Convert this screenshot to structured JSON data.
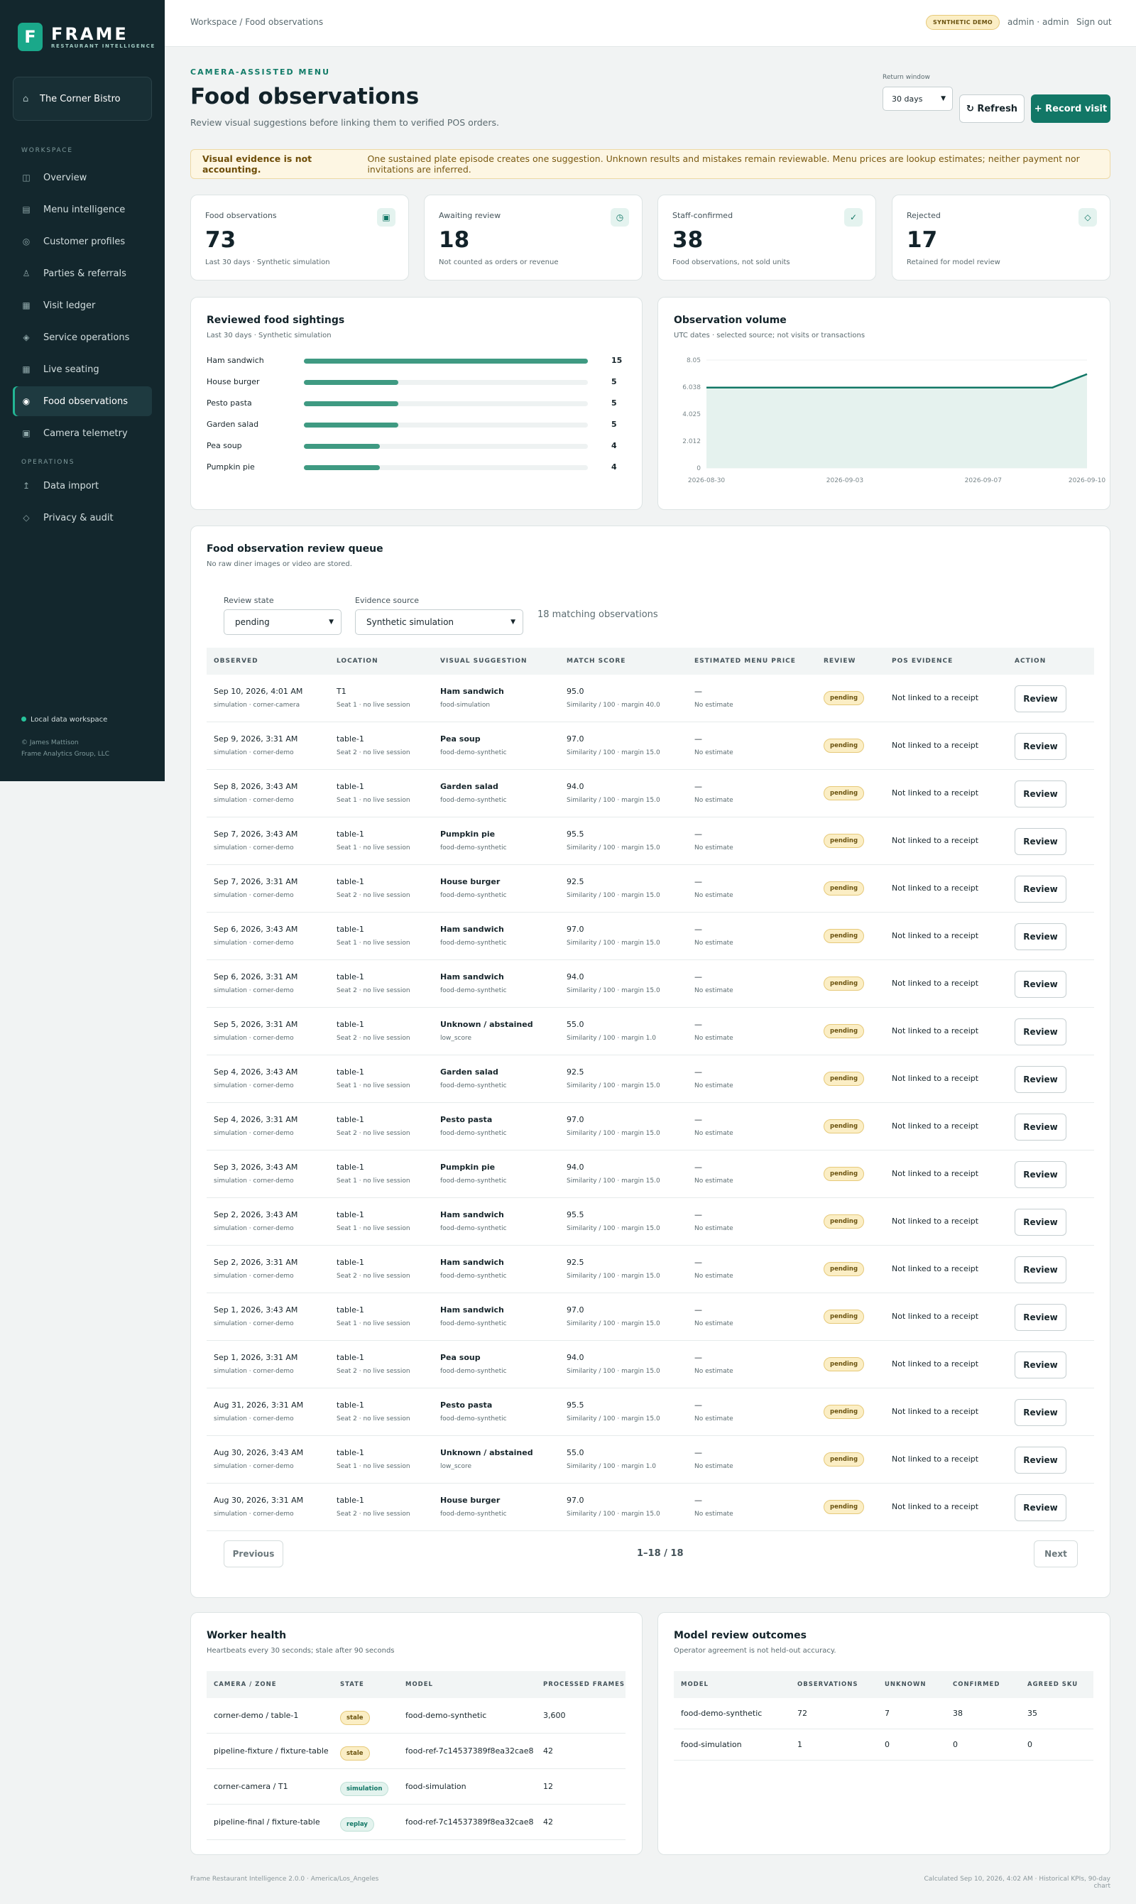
{
  "brand": {
    "name": "FRAME",
    "sub": "RESTAURANT INTELLIGENCE",
    "letter": "F"
  },
  "venue": "The Corner Bistro",
  "sidebar": {
    "workspace_head": "WORKSPACE",
    "operations_head": "OPERATIONS",
    "workspace": [
      {
        "label": "Overview",
        "icon": "◫"
      },
      {
        "label": "Menu intelligence",
        "icon": "▤"
      },
      {
        "label": "Customer profiles",
        "icon": "◎"
      },
      {
        "label": "Parties & referrals",
        "icon": "♙"
      },
      {
        "label": "Visit ledger",
        "icon": "▦"
      },
      {
        "label": "Service operations",
        "icon": "◈"
      },
      {
        "label": "Live seating",
        "icon": "▦"
      },
      {
        "label": "Food observations",
        "icon": "◉"
      },
      {
        "label": "Camera telemetry",
        "icon": "▣"
      }
    ],
    "operations": [
      {
        "label": "Data import",
        "icon": "↥"
      },
      {
        "label": "Privacy & audit",
        "icon": "◇"
      }
    ],
    "footer": "Local data workspace",
    "copy1": "© James Mattison",
    "copy2": "Frame Analytics Group, LLC"
  },
  "topbar": {
    "breadcrumb": "Workspace / Food observations",
    "badge": "SYNTHETIC DEMO",
    "user": "admin · admin",
    "signout": "Sign out"
  },
  "header": {
    "eyebrow": "CAMERA-ASSISTED MENU",
    "title": "Food observations",
    "subtitle": "Review visual suggestions before linking them to verified POS orders.",
    "return_label": "Return window",
    "return_value": "30 days",
    "refresh": "↻ Refresh",
    "record": "+ Record visit"
  },
  "notice": {
    "bold": "Visual evidence is not accounting.",
    "text": "One sustained plate episode creates one suggestion. Unknown results and mistakes remain reviewable. Menu prices are lookup estimates; neither payment nor invitations are inferred."
  },
  "kpis": [
    {
      "label": "Food observations",
      "value": "73",
      "note": "Last 30 days · Synthetic simulation",
      "icon": "▣"
    },
    {
      "label": "Awaiting review",
      "value": "18",
      "note": "Not counted as orders or revenue",
      "icon": "◷"
    },
    {
      "label": "Staff-confirmed",
      "value": "38",
      "note": "Food observations, not sold units",
      "icon": "✓"
    },
    {
      "label": "Rejected",
      "value": "17",
      "note": "Retained for model review",
      "icon": "◇"
    }
  ],
  "sightings": {
    "title": "Reviewed food sightings",
    "subtitle": "Last 30 days · Synthetic simulation",
    "max": 15,
    "items": [
      {
        "label": "Ham sandwich",
        "value": 15
      },
      {
        "label": "House burger",
        "value": 5
      },
      {
        "label": "Pesto pasta",
        "value": 5
      },
      {
        "label": "Garden salad",
        "value": 5
      },
      {
        "label": "Pea soup",
        "value": 4
      },
      {
        "label": "Pumpkin pie",
        "value": 4
      }
    ]
  },
  "chart_data": {
    "type": "area",
    "title": "Observation volume",
    "subtitle": "UTC dates · selected source; not visits or transactions",
    "yticks": [
      "8.05",
      "6.038",
      "4.025",
      "2.012",
      "0"
    ],
    "xticks": [
      "2026-08-30",
      "2026-09-03",
      "2026-09-07",
      "2026-09-10"
    ],
    "ylim": [
      0,
      8.05
    ],
    "x": [
      "2026-08-30",
      "2026-09-09",
      "2026-09-10"
    ],
    "values": [
      6,
      6,
      7
    ],
    "color": "#127766"
  },
  "queue": {
    "title": "Food observation review queue",
    "subtitle": "No raw diner images or video are stored.",
    "state_label": "Review state",
    "state_value": "pending",
    "source_label": "Evidence source",
    "source_value": "Synthetic simulation",
    "count": "18 matching observations",
    "headers": [
      "OBSERVED",
      "LOCATION",
      "VISUAL SUGGESTION",
      "MATCH SCORE",
      "ESTIMATED MENU PRICE",
      "REVIEW",
      "POS EVIDENCE",
      "ACTION"
    ],
    "rows": [
      {
        "time": "Sep 10, 2026, 4:01 AM",
        "src": "simulation · corner-camera",
        "loc": "T1",
        "seat": "Seat 1 · no live session",
        "food": "Ham sandwich",
        "model": "food-simulation",
        "score": "95.0",
        "sim": "Similarity / 100 · margin 40.0",
        "price": "—",
        "est": "No estimate",
        "review": "pending",
        "pos": "Not linked to a receipt",
        "action": "Review"
      },
      {
        "time": "Sep 9, 2026, 3:31 AM",
        "src": "simulation · corner-demo",
        "loc": "table-1",
        "seat": "Seat 2 · no live session",
        "food": "Pea soup",
        "model": "food-demo-synthetic",
        "score": "97.0",
        "sim": "Similarity / 100 · margin 15.0",
        "price": "—",
        "est": "No estimate",
        "review": "pending",
        "pos": "Not linked to a receipt",
        "action": "Review"
      },
      {
        "time": "Sep 8, 2026, 3:43 AM",
        "src": "simulation · corner-demo",
        "loc": "table-1",
        "seat": "Seat 1 · no live session",
        "food": "Garden salad",
        "model": "food-demo-synthetic",
        "score": "94.0",
        "sim": "Similarity / 100 · margin 15.0",
        "price": "—",
        "est": "No estimate",
        "review": "pending",
        "pos": "Not linked to a receipt",
        "action": "Review"
      },
      {
        "time": "Sep 7, 2026, 3:43 AM",
        "src": "simulation · corner-demo",
        "loc": "table-1",
        "seat": "Seat 1 · no live session",
        "food": "Pumpkin pie",
        "model": "food-demo-synthetic",
        "score": "95.5",
        "sim": "Similarity / 100 · margin 15.0",
        "price": "—",
        "est": "No estimate",
        "review": "pending",
        "pos": "Not linked to a receipt",
        "action": "Review"
      },
      {
        "time": "Sep 7, 2026, 3:31 AM",
        "src": "simulation · corner-demo",
        "loc": "table-1",
        "seat": "Seat 2 · no live session",
        "food": "House burger",
        "model": "food-demo-synthetic",
        "score": "92.5",
        "sim": "Similarity / 100 · margin 15.0",
        "price": "—",
        "est": "No estimate",
        "review": "pending",
        "pos": "Not linked to a receipt",
        "action": "Review"
      },
      {
        "time": "Sep 6, 2026, 3:43 AM",
        "src": "simulation · corner-demo",
        "loc": "table-1",
        "seat": "Seat 1 · no live session",
        "food": "Ham sandwich",
        "model": "food-demo-synthetic",
        "score": "97.0",
        "sim": "Similarity / 100 · margin 15.0",
        "price": "—",
        "est": "No estimate",
        "review": "pending",
        "pos": "Not linked to a receipt",
        "action": "Review"
      },
      {
        "time": "Sep 6, 2026, 3:31 AM",
        "src": "simulation · corner-demo",
        "loc": "table-1",
        "seat": "Seat 2 · no live session",
        "food": "Ham sandwich",
        "model": "food-demo-synthetic",
        "score": "94.0",
        "sim": "Similarity / 100 · margin 15.0",
        "price": "—",
        "est": "No estimate",
        "review": "pending",
        "pos": "Not linked to a receipt",
        "action": "Review"
      },
      {
        "time": "Sep 5, 2026, 3:31 AM",
        "src": "simulation · corner-demo",
        "loc": "table-1",
        "seat": "Seat 2 · no live session",
        "food": "Unknown / abstained",
        "model": "low_score",
        "score": "55.0",
        "sim": "Similarity / 100 · margin 1.0",
        "price": "—",
        "est": "No estimate",
        "review": "pending",
        "pos": "Not linked to a receipt",
        "action": "Review"
      },
      {
        "time": "Sep 4, 2026, 3:43 AM",
        "src": "simulation · corner-demo",
        "loc": "table-1",
        "seat": "Seat 1 · no live session",
        "food": "Garden salad",
        "model": "food-demo-synthetic",
        "score": "92.5",
        "sim": "Similarity / 100 · margin 15.0",
        "price": "—",
        "est": "No estimate",
        "review": "pending",
        "pos": "Not linked to a receipt",
        "action": "Review"
      },
      {
        "time": "Sep 4, 2026, 3:31 AM",
        "src": "simulation · corner-demo",
        "loc": "table-1",
        "seat": "Seat 2 · no live session",
        "food": "Pesto pasta",
        "model": "food-demo-synthetic",
        "score": "97.0",
        "sim": "Similarity / 100 · margin 15.0",
        "price": "—",
        "est": "No estimate",
        "review": "pending",
        "pos": "Not linked to a receipt",
        "action": "Review"
      },
      {
        "time": "Sep 3, 2026, 3:43 AM",
        "src": "simulation · corner-demo",
        "loc": "table-1",
        "seat": "Seat 1 · no live session",
        "food": "Pumpkin pie",
        "model": "food-demo-synthetic",
        "score": "94.0",
        "sim": "Similarity / 100 · margin 15.0",
        "price": "—",
        "est": "No estimate",
        "review": "pending",
        "pos": "Not linked to a receipt",
        "action": "Review"
      },
      {
        "time": "Sep 2, 2026, 3:43 AM",
        "src": "simulation · corner-demo",
        "loc": "table-1",
        "seat": "Seat 1 · no live session",
        "food": "Ham sandwich",
        "model": "food-demo-synthetic",
        "score": "95.5",
        "sim": "Similarity / 100 · margin 15.0",
        "price": "—",
        "est": "No estimate",
        "review": "pending",
        "pos": "Not linked to a receipt",
        "action": "Review"
      },
      {
        "time": "Sep 2, 2026, 3:31 AM",
        "src": "simulation · corner-demo",
        "loc": "table-1",
        "seat": "Seat 2 · no live session",
        "food": "Ham sandwich",
        "model": "food-demo-synthetic",
        "score": "92.5",
        "sim": "Similarity / 100 · margin 15.0",
        "price": "—",
        "est": "No estimate",
        "review": "pending",
        "pos": "Not linked to a receipt",
        "action": "Review"
      },
      {
        "time": "Sep 1, 2026, 3:43 AM",
        "src": "simulation · corner-demo",
        "loc": "table-1",
        "seat": "Seat 1 · no live session",
        "food": "Ham sandwich",
        "model": "food-demo-synthetic",
        "score": "97.0",
        "sim": "Similarity / 100 · margin 15.0",
        "price": "—",
        "est": "No estimate",
        "review": "pending",
        "pos": "Not linked to a receipt",
        "action": "Review"
      },
      {
        "time": "Sep 1, 2026, 3:31 AM",
        "src": "simulation · corner-demo",
        "loc": "table-1",
        "seat": "Seat 2 · no live session",
        "food": "Pea soup",
        "model": "food-demo-synthetic",
        "score": "94.0",
        "sim": "Similarity / 100 · margin 15.0",
        "price": "—",
        "est": "No estimate",
        "review": "pending",
        "pos": "Not linked to a receipt",
        "action": "Review"
      },
      {
        "time": "Aug 31, 2026, 3:31 AM",
        "src": "simulation · corner-demo",
        "loc": "table-1",
        "seat": "Seat 2 · no live session",
        "food": "Pesto pasta",
        "model": "food-demo-synthetic",
        "score": "95.5",
        "sim": "Similarity / 100 · margin 15.0",
        "price": "—",
        "est": "No estimate",
        "review": "pending",
        "pos": "Not linked to a receipt",
        "action": "Review"
      },
      {
        "time": "Aug 30, 2026, 3:43 AM",
        "src": "simulation · corner-demo",
        "loc": "table-1",
        "seat": "Seat 1 · no live session",
        "food": "Unknown / abstained",
        "model": "low_score",
        "score": "55.0",
        "sim": "Similarity / 100 · margin 1.0",
        "price": "—",
        "est": "No estimate",
        "review": "pending",
        "pos": "Not linked to a receipt",
        "action": "Review"
      },
      {
        "time": "Aug 30, 2026, 3:31 AM",
        "src": "simulation · corner-demo",
        "loc": "table-1",
        "seat": "Seat 2 · no live session",
        "food": "House burger",
        "model": "food-demo-synthetic",
        "score": "97.0",
        "sim": "Similarity / 100 · margin 15.0",
        "price": "—",
        "est": "No estimate",
        "review": "pending",
        "pos": "Not linked to a receipt",
        "action": "Review"
      }
    ],
    "prev": "Previous",
    "next": "Next",
    "page_info": "1–18 / 18"
  },
  "worker": {
    "title": "Worker health",
    "subtitle": "Heartbeats every 30 seconds; stale after 90 seconds",
    "headers": [
      "CAMERA / ZONE",
      "STATE",
      "MODEL",
      "PROCESSED FRAMES"
    ],
    "rows": [
      {
        "zone": "corner-demo / table-1",
        "state": "stale",
        "model": "food-demo-synthetic",
        "frames": "3,600"
      },
      {
        "zone": "pipeline-fixture / fixture-table",
        "state": "stale",
        "model": "food-ref-7c14537389f8ea32cae8",
        "frames": "42"
      },
      {
        "zone": "corner-camera / T1",
        "state": "simulation",
        "model": "food-simulation",
        "frames": "12"
      },
      {
        "zone": "pipeline-final / fixture-table",
        "state": "replay",
        "model": "food-ref-7c14537389f8ea32cae8",
        "frames": "42"
      }
    ]
  },
  "outcomes": {
    "title": "Model review outcomes",
    "subtitle": "Operator agreement is not held-out accuracy.",
    "headers": [
      "MODEL",
      "OBSERVATIONS",
      "UNKNOWN",
      "CONFIRMED",
      "AGREED SKU"
    ],
    "rows": [
      {
        "model": "food-demo-synthetic",
        "obs": "72",
        "unknown": "7",
        "confirmed": "38",
        "agreed": "35"
      },
      {
        "model": "food-simulation",
        "obs": "1",
        "unknown": "0",
        "confirmed": "0",
        "agreed": "0"
      }
    ]
  },
  "footer": {
    "left": "Frame Restaurant Intelligence 2.0.0 · America/Los_Angeles",
    "right": "Calculated Sep 10, 2026, 4:02 AM · Historical KPIs, 90-day chart"
  }
}
